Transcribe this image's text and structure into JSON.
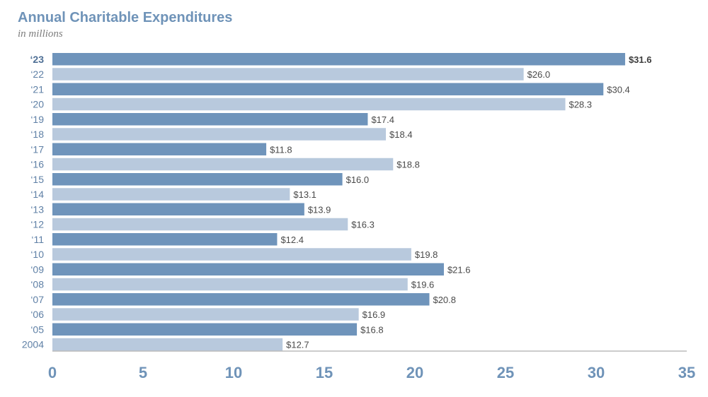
{
  "chart_data": {
    "type": "bar",
    "orientation": "horizontal",
    "title": "Annual Charitable Expenditures",
    "subtitle": "in millions",
    "categories": [
      "‘23",
      "‘22",
      "‘21",
      "‘20",
      "‘19",
      "‘18",
      "‘17",
      "‘16",
      "‘15",
      "‘14",
      "‘13",
      "‘12",
      "‘11",
      "‘10",
      "‘09",
      "‘08",
      "‘07",
      "‘06",
      "‘05",
      "2004"
    ],
    "values": [
      31.6,
      26.0,
      30.4,
      28.3,
      17.4,
      18.4,
      11.8,
      18.8,
      16.0,
      13.1,
      13.9,
      16.3,
      12.4,
      19.8,
      21.6,
      19.6,
      20.8,
      16.9,
      16.8,
      12.7
    ],
    "value_labels": [
      "$31.6",
      "$26.0",
      "$30.4",
      "$28.3",
      "$17.4",
      "$18.4",
      "$11.8",
      "$18.8",
      "$16.0",
      "$13.1",
      "$13.9",
      "$16.3",
      "$12.4",
      "$19.8",
      "$21.6",
      "$19.6",
      "$20.8",
      "$16.9",
      "$16.8",
      "$12.7"
    ],
    "xlim": [
      0,
      35
    ],
    "x_ticks": [
      "0",
      "5",
      "10",
      "15",
      "20",
      "25",
      "30",
      "35"
    ],
    "grid": false,
    "colors": {
      "dark": "#6f94bb",
      "light": "#b8c9dd",
      "axis": "#9a9a9a"
    }
  }
}
